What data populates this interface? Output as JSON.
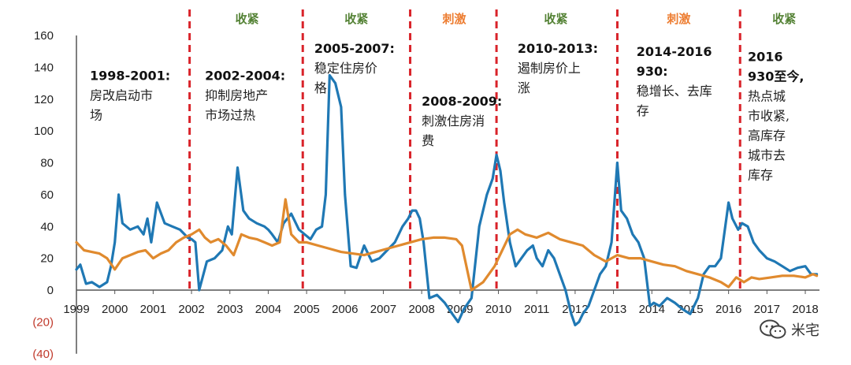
{
  "chart_data": {
    "type": "line",
    "title": "",
    "xlabel": "",
    "ylabel": "",
    "ylim": [
      -40,
      160
    ],
    "xlim": [
      1999,
      2018.5
    ],
    "y_ticks": [
      160,
      140,
      120,
      100,
      80,
      60,
      40,
      20,
      0,
      -20,
      -40
    ],
    "y_tick_labels": [
      "160",
      "140",
      "120",
      "100",
      "80",
      "60",
      "40",
      "20",
      "0",
      "(20)",
      "(40)"
    ],
    "x_ticks": [
      1999,
      2000,
      2001,
      2002,
      2003,
      2004,
      2005,
      2006,
      2007,
      2008,
      2009,
      2010,
      2011,
      2012,
      2013,
      2014,
      2015,
      2016,
      2017,
      2018
    ],
    "x_tick_labels": [
      "1999",
      "2000",
      "2001",
      "2002",
      "2003",
      "2004",
      "2005",
      "2006",
      "2007",
      "2008",
      "2009",
      "2010",
      "2011",
      "2012",
      "2013",
      "2014",
      "2015",
      "2016",
      "2017",
      "2018"
    ],
    "grid": false,
    "series": [
      {
        "color": "#1f78b4",
        "x": [
          1999.0,
          1999.1,
          1999.25,
          1999.4,
          1999.6,
          1999.8,
          1999.9,
          2000.0,
          2000.1,
          2000.2,
          2000.4,
          2000.6,
          2000.75,
          2000.85,
          2000.95,
          2001.1,
          2001.3,
          2001.5,
          2001.7,
          2001.9,
          2002.0,
          2002.1,
          2002.2,
          2002.4,
          2002.6,
          2002.8,
          2002.95,
          2003.05,
          2003.2,
          2003.35,
          2003.5,
          2003.7,
          2003.9,
          2004.0,
          2004.1,
          2004.25,
          2004.4,
          2004.6,
          2004.8,
          2004.95,
          2005.1,
          2005.25,
          2005.4,
          2005.5,
          2005.6,
          2005.75,
          2005.9,
          2006.0,
          2006.15,
          2006.3,
          2006.5,
          2006.7,
          2006.9,
          2007.1,
          2007.3,
          2007.5,
          2007.65,
          2007.75,
          2007.85,
          2007.95,
          2008.05,
          2008.2,
          2008.4,
          2008.6,
          2008.8,
          2008.95,
          2009.1,
          2009.3,
          2009.5,
          2009.7,
          2009.85,
          2009.95,
          2010.05,
          2010.15,
          2010.3,
          2010.45,
          2010.6,
          2010.75,
          2010.9,
          2011.0,
          2011.15,
          2011.3,
          2011.45,
          2011.6,
          2011.75,
          2011.9,
          2012.0,
          2012.1,
          2012.2,
          2012.35,
          2012.5,
          2012.65,
          2012.8,
          2012.95,
          2013.1,
          2013.2,
          2013.35,
          2013.5,
          2013.65,
          2013.8,
          2013.95,
          2014.05,
          2014.2,
          2014.4,
          2014.6,
          2014.8,
          2015.0,
          2015.2,
          2015.35,
          2015.5,
          2015.65,
          2015.8,
          2016.0,
          2016.1,
          2016.25,
          2016.35,
          2016.5,
          2016.65,
          2016.8,
          2017.0,
          2017.2,
          2017.4,
          2017.6,
          2017.8,
          2018.0,
          2018.15,
          2018.3
        ],
        "values": [
          13,
          16,
          4,
          5,
          2,
          5,
          15,
          30,
          60,
          42,
          38,
          40,
          35,
          45,
          30,
          55,
          42,
          40,
          38,
          33,
          32,
          30,
          0,
          18,
          20,
          25,
          40,
          35,
          77,
          50,
          45,
          42,
          40,
          38,
          35,
          30,
          42,
          48,
          38,
          35,
          32,
          38,
          40,
          60,
          135,
          130,
          115,
          60,
          15,
          14,
          28,
          18,
          20,
          25,
          30,
          40,
          45,
          50,
          50,
          45,
          30,
          -5,
          -3,
          -8,
          -15,
          -20,
          -12,
          -5,
          40,
          60,
          70,
          85,
          75,
          55,
          30,
          15,
          20,
          25,
          28,
          20,
          15,
          25,
          20,
          10,
          0,
          -15,
          -22,
          -20,
          -15,
          -10,
          0,
          10,
          15,
          30,
          80,
          50,
          45,
          35,
          30,
          20,
          -10,
          -8,
          -10,
          -5,
          -8,
          -12,
          -15,
          -5,
          10,
          15,
          15,
          20,
          55,
          45,
          38,
          42,
          40,
          30,
          25,
          20,
          18,
          15,
          12,
          14,
          15,
          10,
          10
        ]
      },
      {
        "color": "#e08a2e",
        "x": [
          1999.0,
          1999.2,
          1999.4,
          1999.6,
          1999.8,
          2000.0,
          2000.2,
          2000.4,
          2000.6,
          2000.8,
          2001.0,
          2001.2,
          2001.4,
          2001.6,
          2001.8,
          2002.0,
          2002.2,
          2002.35,
          2002.5,
          2002.7,
          2002.9,
          2003.1,
          2003.3,
          2003.5,
          2003.7,
          2003.9,
          2004.1,
          2004.3,
          2004.45,
          2004.6,
          2004.8,
          2005.0,
          2005.3,
          2005.6,
          2005.9,
          2006.2,
          2006.5,
          2006.8,
          2007.1,
          2007.4,
          2007.7,
          2008.0,
          2008.3,
          2008.6,
          2008.9,
          2009.05,
          2009.3,
          2009.6,
          2009.9,
          2010.1,
          2010.3,
          2010.5,
          2010.7,
          2011.0,
          2011.3,
          2011.6,
          2011.9,
          2012.2,
          2012.5,
          2012.8,
          2013.1,
          2013.4,
          2013.7,
          2014.0,
          2014.3,
          2014.6,
          2014.9,
          2015.2,
          2015.5,
          2015.8,
          2016.0,
          2016.2,
          2016.4,
          2016.6,
          2016.8,
          2017.1,
          2017.4,
          2017.7,
          2018.0,
          2018.2,
          2018.3
        ],
        "values": [
          30,
          25,
          24,
          23,
          20,
          13,
          20,
          22,
          24,
          25,
          20,
          23,
          25,
          30,
          33,
          35,
          38,
          33,
          30,
          32,
          28,
          22,
          35,
          33,
          32,
          30,
          28,
          30,
          57,
          35,
          30,
          30,
          28,
          26,
          24,
          23,
          22,
          24,
          26,
          28,
          30,
          32,
          33,
          33,
          32,
          28,
          0,
          5,
          15,
          25,
          35,
          38,
          35,
          33,
          36,
          32,
          30,
          28,
          22,
          18,
          22,
          20,
          20,
          18,
          16,
          15,
          12,
          10,
          8,
          5,
          2,
          8,
          5,
          8,
          7,
          8,
          9,
          9,
          8,
          10,
          9
        ]
      }
    ],
    "dividers_x": [
      2001.95,
      2004.9,
      2007.7,
      2009.95,
      2013.1,
      2016.3
    ],
    "phases": [
      {
        "label": "收紧",
        "x": 2003.45,
        "color": "#548235"
      },
      {
        "label": "收紧",
        "x": 2006.3,
        "color": "#548235"
      },
      {
        "label": "刺激",
        "x": 2008.85,
        "color": "#ed7d31"
      },
      {
        "label": "收紧",
        "x": 2011.5,
        "color": "#548235"
      },
      {
        "label": "刺激",
        "x": 2014.7,
        "color": "#ed7d31"
      },
      {
        "label": "收紧",
        "x": 2017.45,
        "color": "#548235"
      }
    ],
    "periods": [
      {
        "lines": [
          "1998-2001:",
          "房改启动市",
          "场"
        ],
        "x": 1999.35,
        "y": 132
      },
      {
        "lines": [
          "2002-2004:",
          "抑制房地产",
          "市场过热"
        ],
        "x": 2002.35,
        "y": 132
      },
      {
        "lines": [
          "2005-2007:",
          "稳定住房价",
          "格"
        ],
        "x": 2005.2,
        "y": 149
      },
      {
        "lines": [
          "2008-2009:",
          "刺激住房消",
          "费"
        ],
        "x": 2008.0,
        "y": 116
      },
      {
        "lines": [
          "2010-2013:",
          "遏制房价上",
          "涨"
        ],
        "x": 2010.5,
        "y": 149
      },
      {
        "lines": [
          "2014-2016",
          "930:",
          "稳增长、去库",
          "存"
        ],
        "x": 2013.6,
        "y": 147
      },
      {
        "lines": [
          "2016",
          "930至今,",
          "热点城",
          "市收紧,",
          "高库存",
          "城市去",
          "库存"
        ],
        "x": 2016.5,
        "y": 144
      }
    ]
  },
  "watermark": {
    "icon": "wechat-icon",
    "text": "米宅"
  }
}
